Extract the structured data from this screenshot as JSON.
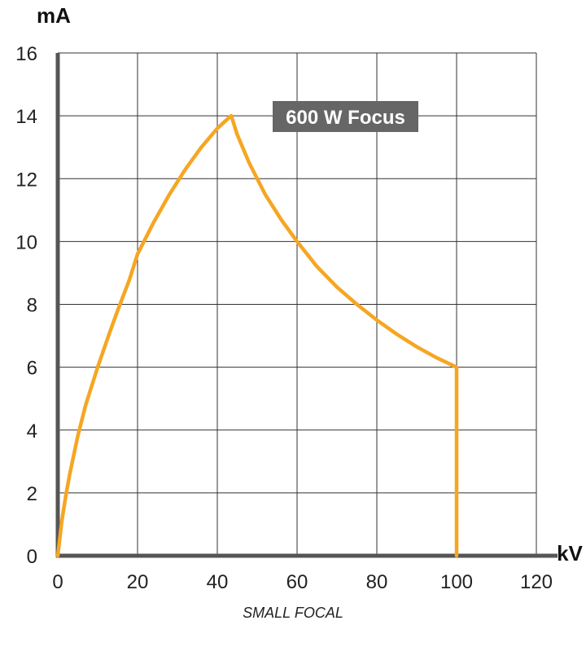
{
  "chart_data": {
    "type": "line",
    "xlabel": "kV",
    "ylabel": "mA",
    "xlim": [
      0,
      120
    ],
    "ylim": [
      0,
      16
    ],
    "x_ticks": [
      "0",
      "20",
      "40",
      "60",
      "80",
      "100",
      "120"
    ],
    "y_ticks": [
      "0",
      "2",
      "4",
      "6",
      "8",
      "10",
      "12",
      "14",
      "16"
    ],
    "grid": true,
    "series": [
      {
        "name": "600 W Focus",
        "color": "#f5a623",
        "x": [
          0,
          1,
          2,
          3,
          5,
          7,
          10,
          13,
          15,
          18,
          20,
          24,
          28,
          32,
          36,
          40,
          43,
          43.5,
          45,
          48,
          52,
          56,
          60,
          65,
          70,
          75,
          80,
          85,
          90,
          95,
          100,
          100
        ],
        "y": [
          0,
          1.1,
          1.9,
          2.6,
          3.8,
          4.8,
          6.0,
          7.1,
          7.8,
          8.8,
          9.6,
          10.6,
          11.5,
          12.3,
          13.0,
          13.6,
          13.95,
          14.0,
          13.4,
          12.5,
          11.5,
          10.7,
          10.0,
          9.2,
          8.55,
          8.0,
          7.5,
          7.05,
          6.65,
          6.3,
          6.0,
          0
        ]
      }
    ],
    "annotation": "600 W Focus",
    "caption": "SMALL FOCAL"
  },
  "colors": {
    "curve": "#f5a623",
    "grid": "#333333",
    "axis": "#555555",
    "badge": "#666666"
  }
}
